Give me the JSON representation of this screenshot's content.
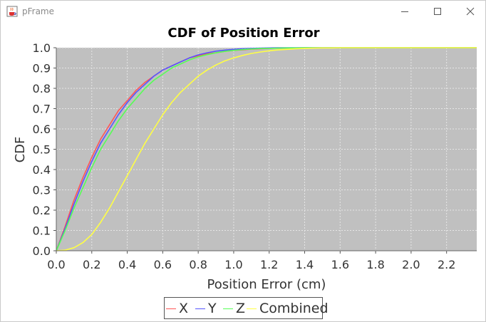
{
  "window": {
    "title": "pFrame",
    "app_icon": "java-cup-icon",
    "controls": [
      "minimize-icon",
      "maximize-icon",
      "close-icon"
    ]
  },
  "colors": {
    "plot_background": "#c0c0c0",
    "grid": "#e6e6e6",
    "X": "#ff5555",
    "Y": "#5555ff",
    "Z": "#55ff55",
    "Combined": "#ffff44"
  },
  "chart_data": {
    "type": "line",
    "title": "CDF of Position Error",
    "xlabel": "Position Error (cm)",
    "ylabel": "CDF",
    "xlim": [
      0.0,
      2.37
    ],
    "ylim": [
      0.0,
      1.0
    ],
    "xticks": [
      "0.0",
      "0.2",
      "0.4",
      "0.6",
      "0.8",
      "1.0",
      "1.2",
      "1.4",
      "1.6",
      "1.8",
      "2.0",
      "2.2"
    ],
    "yticks": [
      "0.0",
      "0.1",
      "0.2",
      "0.3",
      "0.4",
      "0.5",
      "0.6",
      "0.7",
      "0.8",
      "0.9",
      "1.0"
    ],
    "grid": true,
    "legend_position": "bottom",
    "x": [
      0.0,
      0.05,
      0.1,
      0.15,
      0.2,
      0.25,
      0.3,
      0.35,
      0.4,
      0.45,
      0.5,
      0.55,
      0.6,
      0.65,
      0.7,
      0.75,
      0.8,
      0.85,
      0.9,
      0.95,
      1.0,
      1.05,
      1.1,
      1.15,
      1.2,
      1.25,
      1.3,
      1.35,
      1.4,
      1.45,
      1.5,
      1.55,
      1.6,
      1.8,
      2.0,
      2.2,
      2.37
    ],
    "series": [
      {
        "name": "X",
        "values": [
          0.0,
          0.12,
          0.25,
          0.36,
          0.46,
          0.55,
          0.62,
          0.69,
          0.74,
          0.79,
          0.83,
          0.86,
          0.89,
          0.91,
          0.93,
          0.95,
          0.96,
          0.97,
          0.975,
          0.982,
          0.987,
          0.99,
          0.993,
          0.995,
          0.997,
          0.998,
          0.999,
          0.999,
          1.0,
          1.0,
          1.0,
          1.0,
          1.0,
          1.0,
          1.0,
          1.0,
          1.0
        ]
      },
      {
        "name": "Y",
        "values": [
          0.0,
          0.11,
          0.23,
          0.34,
          0.44,
          0.53,
          0.6,
          0.67,
          0.73,
          0.78,
          0.82,
          0.86,
          0.89,
          0.91,
          0.93,
          0.95,
          0.965,
          0.975,
          0.983,
          0.988,
          0.992,
          0.995,
          0.997,
          0.998,
          0.999,
          1.0,
          1.0,
          1.0,
          1.0,
          1.0,
          1.0,
          1.0,
          1.0,
          1.0,
          1.0,
          1.0,
          1.0
        ]
      },
      {
        "name": "Z",
        "values": [
          0.0,
          0.1,
          0.21,
          0.31,
          0.41,
          0.5,
          0.57,
          0.64,
          0.7,
          0.75,
          0.8,
          0.84,
          0.87,
          0.9,
          0.92,
          0.94,
          0.955,
          0.966,
          0.975,
          0.982,
          0.987,
          0.991,
          0.994,
          0.996,
          0.997,
          0.998,
          0.999,
          0.999,
          1.0,
          1.0,
          1.0,
          1.0,
          1.0,
          1.0,
          1.0,
          1.0,
          1.0
        ]
      },
      {
        "name": "Combined",
        "values": [
          0.0,
          0.003,
          0.015,
          0.04,
          0.08,
          0.14,
          0.21,
          0.29,
          0.37,
          0.45,
          0.53,
          0.6,
          0.67,
          0.73,
          0.78,
          0.82,
          0.86,
          0.89,
          0.915,
          0.935,
          0.95,
          0.962,
          0.972,
          0.979,
          0.985,
          0.989,
          0.992,
          0.995,
          0.997,
          0.998,
          0.999,
          0.999,
          1.0,
          1.0,
          1.0,
          1.0,
          1.0
        ]
      }
    ]
  }
}
